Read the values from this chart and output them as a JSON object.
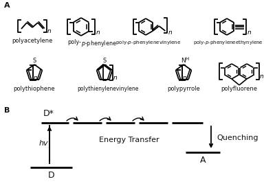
{
  "bg_color": "#ffffff",
  "label_A": "A",
  "label_B": "B",
  "panel_A_labels": [
    "polyacetylene",
    "poly-p-phenylene",
    "poly-p-phenylenevinylene",
    "poly-p-phenyleneethynylene",
    "polythiophene",
    "polythienylenevinylene",
    "polypyrrole",
    "polyfluorene"
  ],
  "panel_B_D_star": "D*",
  "panel_B_energy_transfer": "Energy Transfer",
  "panel_B_hv": "hv",
  "panel_B_quenching": "Quenching",
  "panel_B_D": "D",
  "panel_B_A": "A"
}
